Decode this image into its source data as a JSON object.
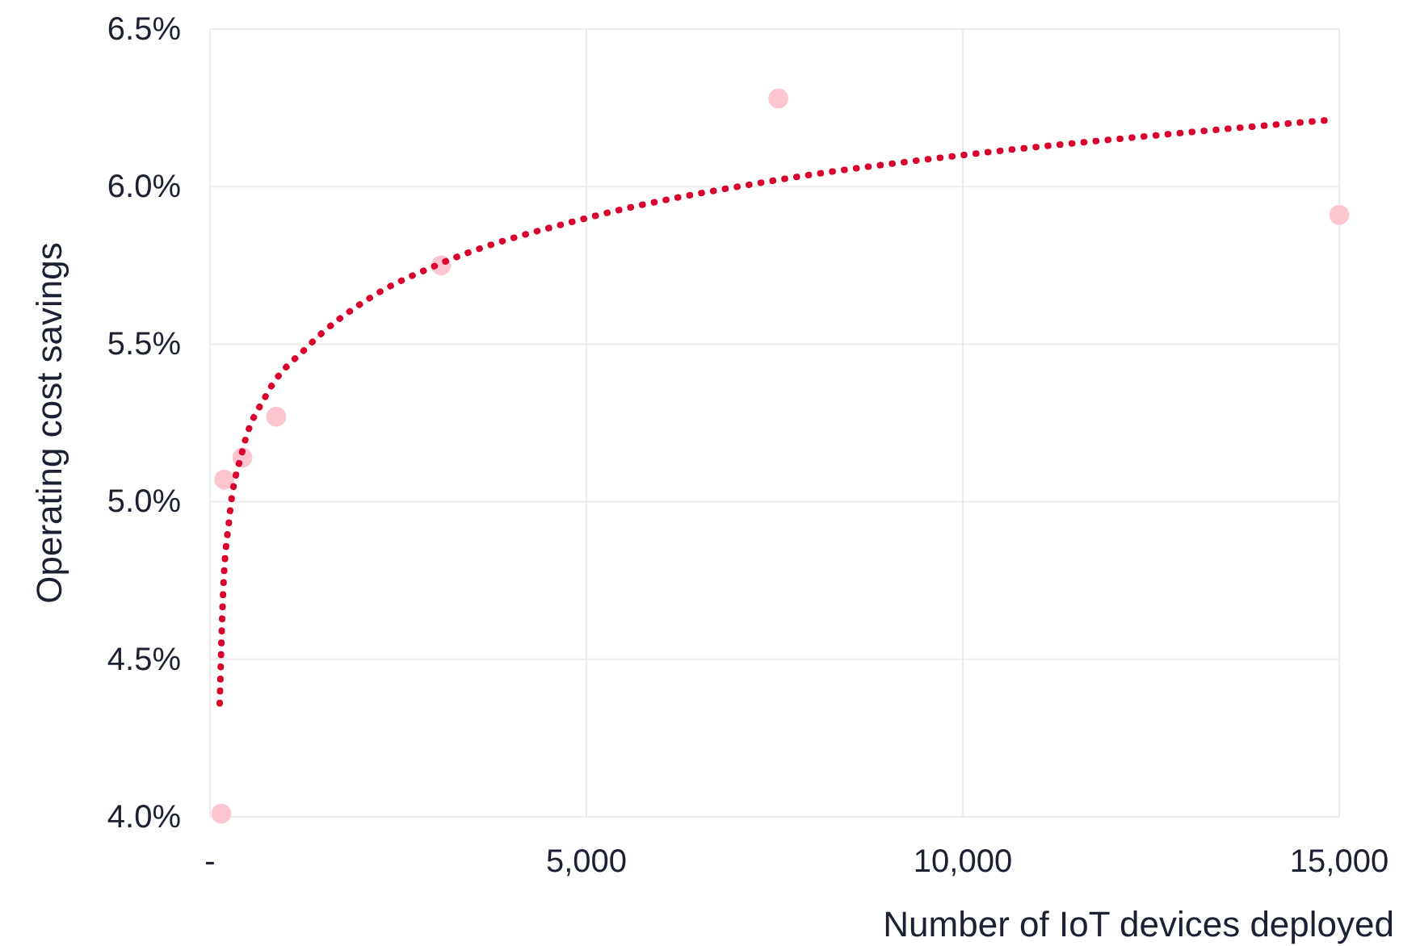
{
  "chart_data": {
    "type": "scatter",
    "xlabel": "Number of IoT devices deployed",
    "ylabel": "Operating cost savings",
    "xlim": [
      0,
      15000
    ],
    "xticks": [
      {
        "value": 0,
        "label": "-"
      },
      {
        "value": 5000,
        "label": "5,000"
      },
      {
        "value": 10000,
        "label": "10,000"
      },
      {
        "value": 15000,
        "label": "15,000"
      }
    ],
    "ylim": [
      4.0,
      6.5
    ],
    "yticks": [
      {
        "value": 4.0,
        "label": "4.0%"
      },
      {
        "value": 4.5,
        "label": "4.5%"
      },
      {
        "value": 5.0,
        "label": "5.0%"
      },
      {
        "value": 5.5,
        "label": "5.5%"
      },
      {
        "value": 6.0,
        "label": "6.0%"
      },
      {
        "value": 6.5,
        "label": "6.5%"
      }
    ],
    "grid": true,
    "series": [
      {
        "color": "#fcc5cf",
        "marker": "circle",
        "x": [
          150,
          190,
          430,
          880,
          3070,
          7550,
          15000
        ],
        "values": [
          4.01,
          5.07,
          5.14,
          5.27,
          5.75,
          6.28,
          5.91
        ]
      },
      {
        "type": "line",
        "color": "#d9002b",
        "line_style": "dotted",
        "marker": "none",
        "x": [
          129,
          172,
          258,
          429,
          751,
          1288,
          2146,
          3004,
          5000,
          7511,
          10000,
          12446,
          14807
        ],
        "values": [
          4.36,
          4.7,
          4.95,
          5.16,
          5.34,
          5.49,
          5.65,
          5.75,
          5.9,
          6.02,
          6.1,
          6.16,
          6.21
        ]
      }
    ]
  }
}
